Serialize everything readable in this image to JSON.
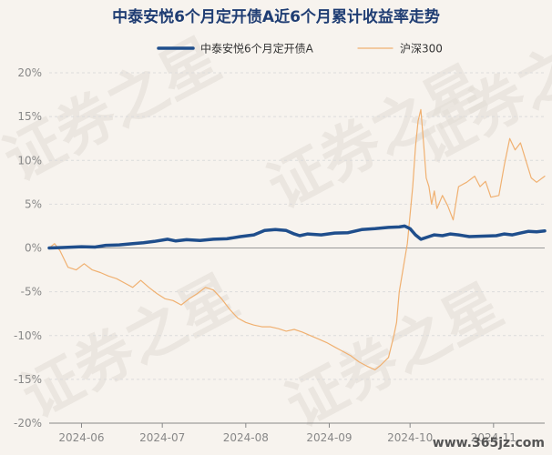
{
  "chart_data": {
    "type": "line",
    "title": "中泰安悦6个月定开债A近6个月累计收益率走势",
    "legend_position": "top",
    "grid": true,
    "ylim": [
      -20,
      20
    ],
    "y_ticks": [
      20,
      15,
      10,
      5,
      0,
      -5,
      -10,
      -15,
      -20
    ],
    "y_tick_labels": [
      "20%",
      "15%",
      "10%",
      "5%",
      "0%",
      "-5%",
      "-10%",
      "-15%",
      "-20%"
    ],
    "x_range": [
      "2024-05-20",
      "2024-11-20"
    ],
    "x_ticks": [
      "2024-06-01",
      "2024-07-01",
      "2024-08-01",
      "2024-09-01",
      "2024-10-01",
      "2024-11-01"
    ],
    "x_tick_labels": [
      "2024-06",
      "2024-07",
      "2024-08",
      "2024-09",
      "2024-10",
      "2024-11"
    ],
    "series": [
      {
        "name": "中泰安悦6个月定开债A",
        "color": "#1f4e8c",
        "values": [
          [
            "2024-05-20",
            0.0
          ],
          [
            "2024-05-25",
            0.05
          ],
          [
            "2024-06-01",
            0.15
          ],
          [
            "2024-06-06",
            0.1
          ],
          [
            "2024-06-10",
            0.3
          ],
          [
            "2024-06-15",
            0.35
          ],
          [
            "2024-06-20",
            0.5
          ],
          [
            "2024-06-24",
            0.6
          ],
          [
            "2024-06-28",
            0.75
          ],
          [
            "2024-07-03",
            1.0
          ],
          [
            "2024-07-06",
            0.8
          ],
          [
            "2024-07-10",
            0.95
          ],
          [
            "2024-07-15",
            0.85
          ],
          [
            "2024-07-20",
            1.0
          ],
          [
            "2024-07-25",
            1.05
          ],
          [
            "2024-07-30",
            1.3
          ],
          [
            "2024-08-04",
            1.5
          ],
          [
            "2024-08-08",
            2.0
          ],
          [
            "2024-08-12",
            2.1
          ],
          [
            "2024-08-16",
            2.0
          ],
          [
            "2024-08-19",
            1.6
          ],
          [
            "2024-08-21",
            1.4
          ],
          [
            "2024-08-24",
            1.6
          ],
          [
            "2024-08-29",
            1.5
          ],
          [
            "2024-09-03",
            1.7
          ],
          [
            "2024-09-08",
            1.75
          ],
          [
            "2024-09-13",
            2.1
          ],
          [
            "2024-09-18",
            2.2
          ],
          [
            "2024-09-23",
            2.35
          ],
          [
            "2024-09-27",
            2.4
          ],
          [
            "2024-09-29",
            2.5
          ],
          [
            "2024-10-01",
            2.2
          ],
          [
            "2024-10-03",
            1.5
          ],
          [
            "2024-10-05",
            1.0
          ],
          [
            "2024-10-08",
            1.3
          ],
          [
            "2024-10-10",
            1.5
          ],
          [
            "2024-10-13",
            1.4
          ],
          [
            "2024-10-16",
            1.6
          ],
          [
            "2024-10-19",
            1.5
          ],
          [
            "2024-10-23",
            1.3
          ],
          [
            "2024-10-28",
            1.35
          ],
          [
            "2024-11-02",
            1.4
          ],
          [
            "2024-11-05",
            1.6
          ],
          [
            "2024-11-08",
            1.5
          ],
          [
            "2024-11-11",
            1.7
          ],
          [
            "2024-11-14",
            1.9
          ],
          [
            "2024-11-17",
            1.85
          ],
          [
            "2024-11-20",
            1.95
          ]
        ]
      },
      {
        "name": "沪深300",
        "color": "#f0b070",
        "values": [
          [
            "2024-05-20",
            0.0
          ],
          [
            "2024-05-22",
            0.5
          ],
          [
            "2024-05-24",
            -0.3
          ],
          [
            "2024-05-27",
            -2.2
          ],
          [
            "2024-05-30",
            -2.5
          ],
          [
            "2024-06-02",
            -1.8
          ],
          [
            "2024-06-05",
            -2.5
          ],
          [
            "2024-06-08",
            -2.8
          ],
          [
            "2024-06-11",
            -3.2
          ],
          [
            "2024-06-14",
            -3.5
          ],
          [
            "2024-06-17",
            -4.0
          ],
          [
            "2024-06-20",
            -4.5
          ],
          [
            "2024-06-23",
            -3.7
          ],
          [
            "2024-06-26",
            -4.5
          ],
          [
            "2024-06-29",
            -5.2
          ],
          [
            "2024-07-02",
            -5.8
          ],
          [
            "2024-07-05",
            -6.0
          ],
          [
            "2024-07-08",
            -6.5
          ],
          [
            "2024-07-11",
            -5.8
          ],
          [
            "2024-07-14",
            -5.2
          ],
          [
            "2024-07-17",
            -4.5
          ],
          [
            "2024-07-20",
            -4.8
          ],
          [
            "2024-07-23",
            -5.8
          ],
          [
            "2024-07-26",
            -7.0
          ],
          [
            "2024-07-29",
            -8.0
          ],
          [
            "2024-08-01",
            -8.5
          ],
          [
            "2024-08-04",
            -8.8
          ],
          [
            "2024-08-07",
            -9.0
          ],
          [
            "2024-08-10",
            -9.0
          ],
          [
            "2024-08-13",
            -9.2
          ],
          [
            "2024-08-16",
            -9.5
          ],
          [
            "2024-08-19",
            -9.3
          ],
          [
            "2024-08-22",
            -9.6
          ],
          [
            "2024-08-25",
            -10.0
          ],
          [
            "2024-08-28",
            -10.4
          ],
          [
            "2024-08-31",
            -10.8
          ],
          [
            "2024-09-03",
            -11.3
          ],
          [
            "2024-09-06",
            -11.8
          ],
          [
            "2024-09-09",
            -12.3
          ],
          [
            "2024-09-12",
            -13.0
          ],
          [
            "2024-09-15",
            -13.5
          ],
          [
            "2024-09-18",
            -13.9
          ],
          [
            "2024-09-20",
            -13.4
          ],
          [
            "2024-09-23",
            -12.5
          ],
          [
            "2024-09-25",
            -10.0
          ],
          [
            "2024-09-26",
            -8.5
          ],
          [
            "2024-09-27",
            -5.0
          ],
          [
            "2024-09-30",
            0.5
          ],
          [
            "2024-10-02",
            7.0
          ],
          [
            "2024-10-03",
            11.5
          ],
          [
            "2024-10-04",
            14.5
          ],
          [
            "2024-10-05",
            15.8
          ],
          [
            "2024-10-06",
            12.0
          ],
          [
            "2024-10-07",
            8.0
          ],
          [
            "2024-10-08",
            7.0
          ],
          [
            "2024-10-09",
            5.0
          ],
          [
            "2024-10-10",
            6.5
          ],
          [
            "2024-10-11",
            4.5
          ],
          [
            "2024-10-13",
            6.0
          ],
          [
            "2024-10-15",
            4.8
          ],
          [
            "2024-10-17",
            3.2
          ],
          [
            "2024-10-19",
            7.0
          ],
          [
            "2024-10-22",
            7.5
          ],
          [
            "2024-10-25",
            8.2
          ],
          [
            "2024-10-27",
            7.0
          ],
          [
            "2024-10-29",
            7.6
          ],
          [
            "2024-10-31",
            5.8
          ],
          [
            "2024-11-03",
            6.0
          ],
          [
            "2024-11-05",
            9.5
          ],
          [
            "2024-11-07",
            12.5
          ],
          [
            "2024-11-09",
            11.2
          ],
          [
            "2024-11-11",
            12.0
          ],
          [
            "2024-11-13",
            10.0
          ],
          [
            "2024-11-15",
            8.0
          ],
          [
            "2024-11-17",
            7.5
          ],
          [
            "2024-11-20",
            8.2
          ]
        ]
      }
    ]
  },
  "watermark": {
    "text": "证券之星",
    "url": "www.365jz.com"
  }
}
